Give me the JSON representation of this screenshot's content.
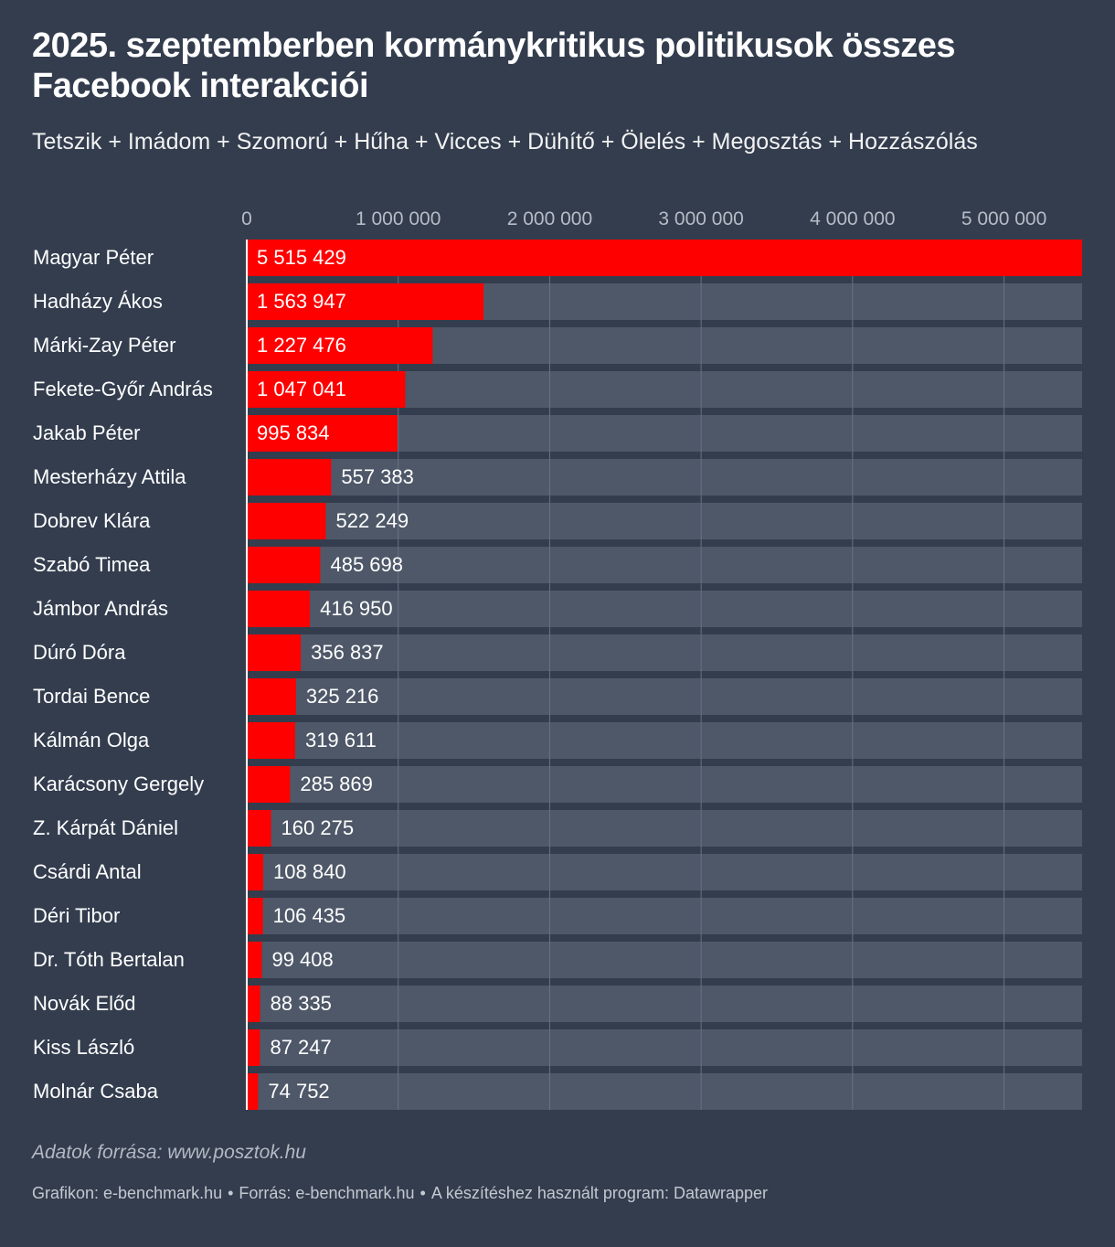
{
  "title": "2025. szeptemberben kormánykritikus politikusok összes Facebook interakciói",
  "subtitle": "Tetszik + Imádom + Szomorú + Hűha + Vicces + Dühítő + Ölelés + Megosztás + Hozzászólás",
  "notes": "Adatok forrása: www.posztok.hu",
  "footer": {
    "graphic": "Grafikon: e-benchmark.hu",
    "source": "Forrás: e-benchmark.hu",
    "tool": "A készítéshez használt program: Datawrapper"
  },
  "colors": {
    "background": "#333d4e",
    "bar": "#ff0000",
    "track": "#4e5868"
  },
  "chart_data": {
    "type": "bar",
    "orientation": "horizontal",
    "title": "2025. szeptemberben kormánykritikus politikusok összes Facebook interakciói",
    "xlim": [
      0,
      5515429
    ],
    "ticks": [
      0,
      1000000,
      2000000,
      3000000,
      4000000,
      5000000
    ],
    "tick_labels": [
      "0",
      "1 000 000",
      "2 000 000",
      "3 000 000",
      "4 000 000",
      "5 000 000"
    ],
    "grid": true,
    "categories": [
      "Magyar Péter",
      "Hadházy Ákos",
      "Márki-Zay Péter",
      "Fekete-Győr András",
      "Jakab Péter",
      "Mesterházy Attila",
      "Dobrev Klára",
      "Szabó Timea",
      "Jámbor András",
      "Dúró Dóra",
      "Tordai Bence",
      "Kálmán Olga",
      "Karácsony Gergely",
      "Z. Kárpát Dániel",
      "Csárdi Antal",
      "Déri Tibor",
      "Dr. Tóth Bertalan",
      "Novák Előd",
      "Kiss László",
      "Molnár Csaba"
    ],
    "values": [
      5515429,
      1563947,
      1227476,
      1047041,
      995834,
      557383,
      522249,
      485698,
      416950,
      356837,
      325216,
      319611,
      285869,
      160275,
      108840,
      106435,
      99408,
      88335,
      87247,
      74752
    ],
    "value_labels": [
      "5 515 429",
      "1 563 947",
      "1 227 476",
      "1 047 041",
      "995 834",
      "557 383",
      "522 249",
      "485 698",
      "416 950",
      "356 837",
      "325 216",
      "319 611",
      "285 869",
      "160 275",
      "108 840",
      "106 435",
      "99 408",
      "88 335",
      "87 247",
      "74 752"
    ]
  }
}
